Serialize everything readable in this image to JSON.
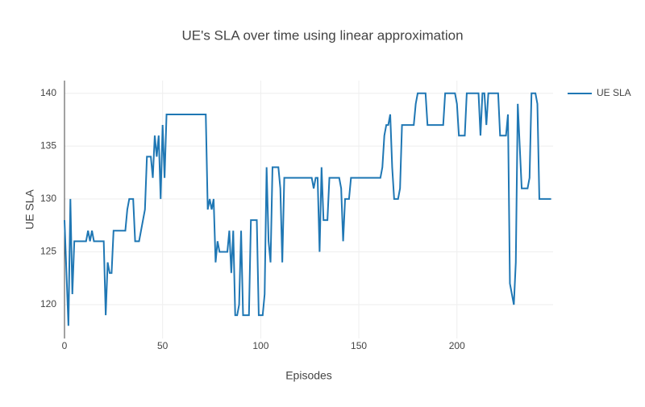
{
  "chart_data": {
    "type": "line",
    "title": "UE's SLA over time using linear approximation",
    "x_label": "Episodes",
    "y_label": "UE SLA",
    "x": [
      0,
      1,
      2,
      3,
      4,
      5,
      6,
      7,
      8,
      9,
      10,
      11,
      12,
      13,
      14,
      15,
      16,
      17,
      18,
      19,
      20,
      21,
      22,
      23,
      24,
      25,
      26,
      27,
      28,
      29,
      30,
      31,
      32,
      33,
      34,
      35,
      36,
      37,
      38,
      39,
      40,
      41,
      42,
      43,
      44,
      45,
      46,
      47,
      48,
      49,
      50,
      51,
      52,
      53,
      54,
      55,
      56,
      57,
      58,
      59,
      60,
      61,
      62,
      63,
      64,
      65,
      66,
      67,
      68,
      69,
      70,
      71,
      72,
      73,
      74,
      75,
      76,
      77,
      78,
      79,
      80,
      81,
      82,
      83,
      84,
      85,
      86,
      87,
      88,
      89,
      90,
      91,
      92,
      93,
      94,
      95,
      96,
      97,
      98,
      99,
      100,
      101,
      102,
      103,
      104,
      105,
      106,
      107,
      108,
      109,
      110,
      111,
      112,
      113,
      114,
      115,
      116,
      117,
      118,
      119,
      120,
      121,
      122,
      123,
      124,
      125,
      126,
      127,
      128,
      129,
      130,
      131,
      132,
      133,
      134,
      135,
      136,
      137,
      138,
      139,
      140,
      141,
      142,
      143,
      144,
      145,
      146,
      147,
      148,
      149,
      150,
      151,
      152,
      153,
      154,
      155,
      156,
      157,
      158,
      159,
      160,
      161,
      162,
      163,
      164,
      165,
      166,
      167,
      168,
      169,
      170,
      171,
      172,
      173,
      174,
      175,
      176,
      177,
      178,
      179,
      180,
      181,
      182,
      183,
      184,
      185,
      186,
      187,
      188,
      189,
      190,
      191,
      192,
      193,
      194,
      195,
      196,
      197,
      198,
      199,
      200,
      201,
      202,
      203,
      204,
      205,
      206,
      207,
      208,
      209,
      210,
      211,
      212,
      213,
      214,
      215,
      216,
      217,
      218,
      219,
      220,
      221,
      222,
      223,
      224,
      225,
      226,
      227,
      228,
      229,
      230,
      231,
      232,
      233,
      234,
      235,
      236,
      237,
      238,
      239,
      240,
      241,
      242,
      243,
      244,
      245,
      246,
      247,
      248
    ],
    "series": [
      {
        "name": "UE SLA",
        "color": "#1f77b4",
        "values": [
          128,
          123,
          118,
          130,
          121,
          126,
          126,
          126,
          126,
          126,
          126,
          126,
          127,
          126,
          127,
          126,
          126,
          126,
          126,
          126,
          126,
          119,
          124,
          123,
          123,
          127,
          127,
          127,
          127,
          127,
          127,
          127,
          129,
          130,
          130,
          130,
          126,
          126,
          126,
          127,
          128,
          129,
          134,
          134,
          134,
          132,
          136,
          134,
          136,
          130,
          137,
          132,
          138,
          138,
          138,
          138,
          138,
          138,
          138,
          138,
          138,
          138,
          138,
          138,
          138,
          138,
          138,
          138,
          138,
          138,
          138,
          138,
          138,
          129,
          130,
          129,
          130,
          124,
          126,
          125,
          125,
          125,
          125,
          125,
          127,
          123,
          127,
          119,
          119,
          120,
          127,
          119,
          119,
          119,
          119,
          128,
          128,
          128,
          128,
          119,
          119,
          119,
          121,
          133,
          126,
          124,
          133,
          133,
          133,
          133,
          131,
          124,
          132,
          132,
          132,
          132,
          132,
          132,
          132,
          132,
          132,
          132,
          132,
          132,
          132,
          132,
          132,
          131,
          132,
          132,
          125,
          133,
          128,
          128,
          128,
          132,
          132,
          132,
          132,
          132,
          132,
          131,
          126,
          130,
          130,
          130,
          132,
          132,
          132,
          132,
          132,
          132,
          132,
          132,
          132,
          132,
          132,
          132,
          132,
          132,
          132,
          132,
          133,
          136,
          137,
          137,
          138,
          133,
          130,
          130,
          130,
          131,
          137,
          137,
          137,
          137,
          137,
          137,
          137,
          139,
          140,
          140,
          140,
          140,
          140,
          137,
          137,
          137,
          137,
          137,
          137,
          137,
          137,
          137,
          140,
          140,
          140,
          140,
          140,
          140,
          139,
          136,
          136,
          136,
          136,
          140,
          140,
          140,
          140,
          140,
          140,
          140,
          136,
          140,
          140,
          137,
          140,
          140,
          140,
          140,
          140,
          140,
          136,
          136,
          136,
          136,
          138,
          122,
          121,
          120,
          124,
          139,
          135,
          131,
          131,
          131,
          131,
          132,
          140,
          140,
          140,
          139,
          130,
          130,
          130,
          130,
          130,
          130,
          130
        ]
      }
    ],
    "xlim": [
      0,
      249
    ],
    "ylim": [
      116.8,
      141.2
    ],
    "xticks": [
      0,
      50,
      100,
      150,
      200
    ],
    "yticks": [
      120,
      125,
      130,
      135,
      140
    ],
    "grid": true,
    "legend": "top-right"
  }
}
